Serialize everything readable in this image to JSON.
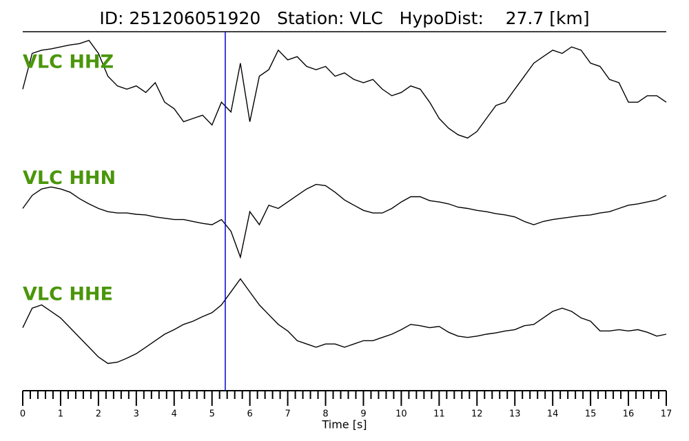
{
  "chart_data": {
    "type": "line",
    "title": "ID: 251206051920   Station: VLC   HypoDist:    27.7 [km]",
    "xlabel": "Time [s]",
    "xlim": [
      0,
      17
    ],
    "xticks": [
      0,
      1,
      2,
      3,
      4,
      5,
      6,
      7,
      8,
      9,
      10,
      11,
      12,
      13,
      14,
      15,
      16,
      17
    ],
    "ylim": [
      -90,
      90
    ],
    "vlines": [
      {
        "x": 5.35,
        "color": "#0000cc"
      }
    ],
    "label_color": "#4a960a",
    "x": [
      0,
      0.25,
      0.5,
      0.75,
      1,
      1.25,
      1.5,
      1.75,
      2,
      2.25,
      2.5,
      2.75,
      3,
      3.25,
      3.5,
      3.75,
      4,
      4.25,
      4.5,
      4.75,
      5,
      5.25,
      5.5,
      5.75,
      6,
      6.25,
      6.5,
      6.75,
      7,
      7.25,
      7.5,
      7.75,
      8,
      8.25,
      8.5,
      8.75,
      9,
      9.25,
      9.5,
      9.75,
      10,
      10.25,
      10.5,
      10.75,
      11,
      11.25,
      11.5,
      11.75,
      12,
      12.25,
      12.5,
      12.75,
      13,
      13.25,
      13.5,
      13.75,
      14,
      14.25,
      14.5,
      14.75,
      15,
      15.25,
      15.5,
      15.75,
      16,
      16.25,
      16.5,
      16.75,
      17
    ],
    "series": [
      {
        "name": "VLC HHZ",
        "color": "#000000",
        "values": [
          5,
          60,
          65,
          67,
          70,
          73,
          75,
          80,
          60,
          25,
          10,
          5,
          10,
          0,
          15,
          -15,
          -25,
          -45,
          -40,
          -35,
          -50,
          -15,
          -30,
          45,
          -45,
          25,
          35,
          65,
          50,
          55,
          40,
          35,
          40,
          25,
          30,
          20,
          15,
          20,
          5,
          -5,
          0,
          10,
          5,
          -15,
          -40,
          -55,
          -65,
          -70,
          -60,
          -40,
          -20,
          -15,
          5,
          25,
          45,
          55,
          65,
          60,
          70,
          65,
          45,
          40,
          20,
          15,
          -15,
          -15,
          -5,
          -5,
          -15
        ]
      },
      {
        "name": "VLC HHN",
        "color": "#000000",
        "values": [
          0,
          20,
          30,
          33,
          30,
          25,
          15,
          7,
          0,
          -5,
          -7,
          -7,
          -9,
          -10,
          -13,
          -15,
          -17,
          -17,
          -20,
          -23,
          -25,
          -17,
          -35,
          -75,
          -5,
          -25,
          5,
          0,
          10,
          20,
          30,
          37,
          35,
          25,
          13,
          5,
          -3,
          -7,
          -7,
          0,
          10,
          18,
          18,
          12,
          10,
          7,
          2,
          0,
          -3,
          -5,
          -8,
          -10,
          -13,
          -20,
          -25,
          -20,
          -17,
          -15,
          -13,
          -11,
          -10,
          -7,
          -5,
          0,
          5,
          7,
          10,
          13,
          20
        ]
      },
      {
        "name": "VLC HHE",
        "color": "#000000",
        "values": [
          -5,
          25,
          30,
          20,
          10,
          -5,
          -20,
          -35,
          -50,
          -60,
          -58,
          -52,
          -45,
          -35,
          -25,
          -15,
          -8,
          0,
          5,
          12,
          18,
          30,
          50,
          70,
          50,
          30,
          15,
          0,
          -10,
          -25,
          -30,
          -35,
          -30,
          -30,
          -35,
          -30,
          -25,
          -25,
          -20,
          -15,
          -8,
          0,
          -2,
          -5,
          -3,
          -12,
          -18,
          -20,
          -18,
          -15,
          -13,
          -10,
          -8,
          -2,
          0,
          10,
          20,
          25,
          20,
          10,
          5,
          -10,
          -10,
          -8,
          -10,
          -8,
          -12,
          -18,
          -15
        ]
      }
    ]
  }
}
